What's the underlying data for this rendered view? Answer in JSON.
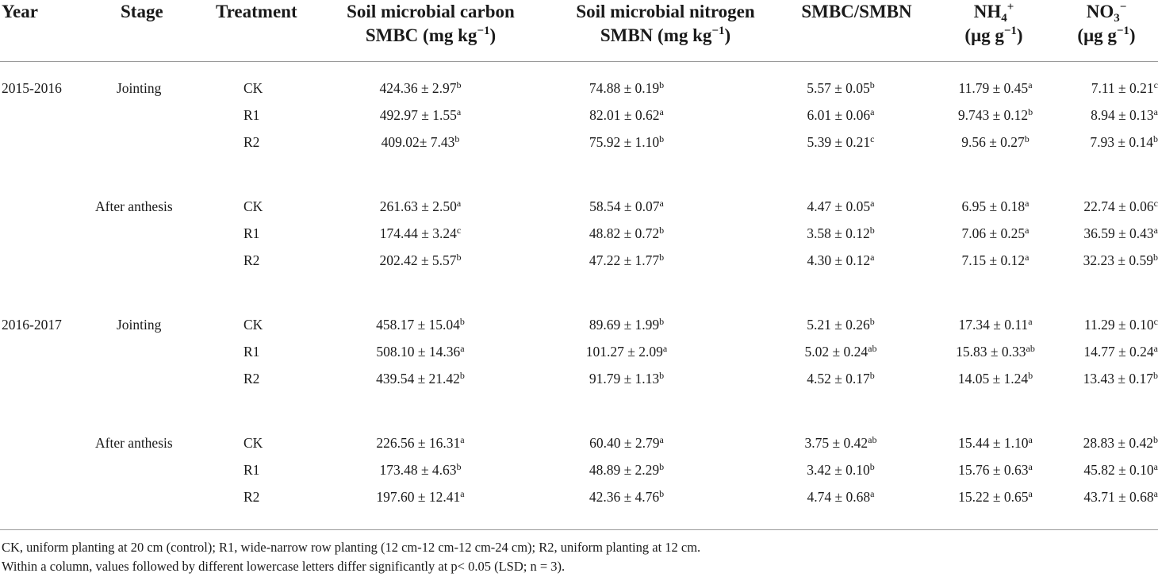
{
  "header": {
    "year": "Year",
    "stage": "Stage",
    "treatment": "Treatment",
    "smbc_line1": "Soil microbial carbon",
    "smbc_line2_pre": "SMBC (mg kg",
    "smbc_line2_sup": "−1",
    "smbc_line2_post": ")",
    "smbn_line1": "Soil microbial nitrogen",
    "smbn_line2_pre": "SMBN (mg kg",
    "smbn_line2_sup": "−1",
    "smbn_line2_post": ")",
    "ratio": "SMBC/SMBN",
    "nh4_base": "NH",
    "nh4_sub": "4",
    "nh4_sup": "+",
    "nh4_unit_pre": "(μg g",
    "nh4_unit_sup": "−1",
    "nh4_unit_post": ")",
    "no3_base": "NO",
    "no3_sub": "3",
    "no3_sup": "−",
    "no3_unit_pre": "(μg g",
    "no3_unit_sup": "−1",
    "no3_unit_post": ")"
  },
  "groups": [
    {
      "year": "2015-2016",
      "stage": "Jointing",
      "rows": [
        {
          "treatment": "CK",
          "smbc": "424.36 ± 2.97",
          "smbc_l": "b",
          "smbn": "74.88 ± 0.19",
          "smbn_l": "b",
          "ratio": "5.57 ± 0.05",
          "ratio_l": "b",
          "nh4": "11.79 ± 0.45",
          "nh4_l": "a",
          "no3": "7.11 ± 0.21",
          "no3_l": "c"
        },
        {
          "treatment": "R1",
          "smbc": "492.97 ± 1.55",
          "smbc_l": "a",
          "smbn": "82.01 ± 0.62",
          "smbn_l": "a",
          "ratio": "6.01 ± 0.06",
          "ratio_l": "a",
          "nh4": "9.743 ± 0.12",
          "nh4_l": "b",
          "no3": "8.94 ± 0.13",
          "no3_l": "a"
        },
        {
          "treatment": "R2",
          "smbc": "409.02± 7.43",
          "smbc_l": "b",
          "smbn": "75.92 ± 1.10",
          "smbn_l": "b",
          "ratio": "5.39 ± 0.21",
          "ratio_l": "c",
          "nh4": "9.56 ± 0.27",
          "nh4_l": "b",
          "no3": "7.93 ± 0.14",
          "no3_l": "b"
        }
      ]
    },
    {
      "year": "",
      "stage": "After anthesis",
      "rows": [
        {
          "treatment": "CK",
          "smbc": "261.63 ± 2.50",
          "smbc_l": "a",
          "smbn": "58.54 ± 0.07",
          "smbn_l": "a",
          "ratio": "4.47 ± 0.05",
          "ratio_l": "a",
          "nh4": "6.95 ± 0.18",
          "nh4_l": "a",
          "no3": "22.74 ± 0.06",
          "no3_l": "c"
        },
        {
          "treatment": "R1",
          "smbc": "174.44 ± 3.24",
          "smbc_l": "c",
          "smbn": "48.82 ± 0.72",
          "smbn_l": "b",
          "ratio": "3.58 ± 0.12",
          "ratio_l": "b",
          "nh4": "7.06 ± 0.25",
          "nh4_l": "a",
          "no3": "36.59 ± 0.43",
          "no3_l": "a"
        },
        {
          "treatment": "R2",
          "smbc": "202.42 ± 5.57",
          "smbc_l": "b",
          "smbn": "47.22 ± 1.77",
          "smbn_l": "b",
          "ratio": "4.30 ± 0.12",
          "ratio_l": "a",
          "nh4": "7.15 ± 0.12",
          "nh4_l": "a",
          "no3": "32.23 ± 0.59",
          "no3_l": "b"
        }
      ]
    },
    {
      "year": "2016-2017",
      "stage": "Jointing",
      "rows": [
        {
          "treatment": "CK",
          "smbc": "458.17 ± 15.04",
          "smbc_l": "b",
          "smbn": "89.69 ± 1.99",
          "smbn_l": "b",
          "ratio": "5.21 ± 0.26",
          "ratio_l": "b",
          "nh4": "17.34 ± 0.11",
          "nh4_l": "a",
          "no3": "11.29 ± 0.10",
          "no3_l": "c"
        },
        {
          "treatment": "R1",
          "smbc": "508.10 ± 14.36",
          "smbc_l": "a",
          "smbn": "101.27 ± 2.09",
          "smbn_l": "a",
          "ratio": "5.02 ± 0.24",
          "ratio_l": "ab",
          "nh4": "15.83 ± 0.33",
          "nh4_l": "ab",
          "no3": "14.77 ± 0.24",
          "no3_l": "a"
        },
        {
          "treatment": "R2",
          "smbc": "439.54 ± 21.42",
          "smbc_l": "b",
          "smbn": "91.79 ± 1.13",
          "smbn_l": "b",
          "ratio": "4.52 ± 0.17",
          "ratio_l": "b",
          "nh4": "14.05 ± 1.24",
          "nh4_l": "b",
          "no3": "13.43 ± 0.17",
          "no3_l": "b"
        }
      ]
    },
    {
      "year": "",
      "stage": "After anthesis",
      "rows": [
        {
          "treatment": "CK",
          "smbc": "226.56 ± 16.31",
          "smbc_l": "a",
          "smbn": "60.40 ± 2.79",
          "smbn_l": "a",
          "ratio": "3.75 ± 0.42",
          "ratio_l": "ab",
          "nh4": "15.44 ± 1.10",
          "nh4_l": "a",
          "no3": "28.83 ± 0.42",
          "no3_l": "b"
        },
        {
          "treatment": "R1",
          "smbc": "173.48 ± 4.63",
          "smbc_l": "b",
          "smbn": "48.89 ± 2.29",
          "smbn_l": "b",
          "ratio": "3.42 ± 0.10",
          "ratio_l": "b",
          "nh4": "15.76 ± 0.63",
          "nh4_l": "a",
          "no3": "45.82 ± 0.10",
          "no3_l": "a"
        },
        {
          "treatment": "R2",
          "smbc": "197.60 ± 12.41",
          "smbc_l": "a",
          "smbn": "42.36 ± 4.76",
          "smbn_l": "b",
          "ratio": "4.74 ± 0.68",
          "ratio_l": "a",
          "nh4": "15.22 ± 0.65",
          "nh4_l": "a",
          "no3": "43.71 ± 0.68",
          "no3_l": "a"
        }
      ]
    }
  ],
  "footnotes": {
    "line1": "CK, uniform planting at 20 cm (control); R1, wide-narrow row planting (12 cm-12 cm-12 cm-24 cm); R2, uniform planting at 12 cm.",
    "line2": "Within a column, values followed by different lowercase letters differ significantly at p< 0.05 (LSD; n = 3)."
  }
}
